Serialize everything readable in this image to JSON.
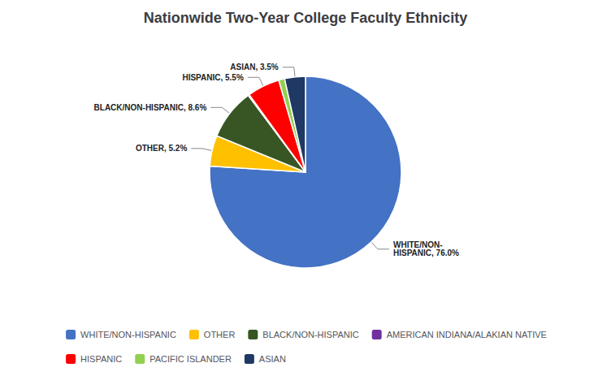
{
  "chart_data": {
    "type": "pie",
    "title": "Nationwide Two-Year College Faculty Ethnicity",
    "categories": [
      "WHITE/NON-HISPANIC",
      "OTHER",
      "BLACK/NON-HISPANIC",
      "AMERICAN INDIANA/ALAKIAN NATIVE",
      "HISPANIC",
      "PACIFIC ISLANDER",
      "ASIAN"
    ],
    "values": [
      76.0,
      5.2,
      8.6,
      0.2,
      5.5,
      1.0,
      3.5
    ],
    "value_labels": [
      "WHITE/NON-\nHISPANIC, 76.0%",
      "OTHER, 5.2%",
      "BLACK/NON-HISPANIC, 8.6%",
      null,
      "HISPANIC, 5.5%",
      null,
      "ASIAN, 3.5%"
    ],
    "colors": [
      "#4472C4",
      "#FFC000",
      "#375623",
      "#7030A0",
      "#FF0000",
      "#92D050",
      "#1F3864"
    ],
    "data_labels": true,
    "legend": "bottom"
  }
}
